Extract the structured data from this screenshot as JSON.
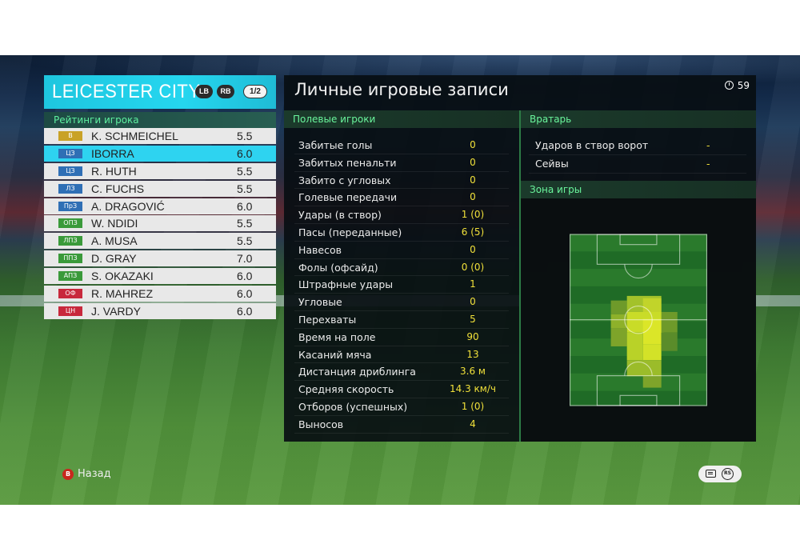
{
  "team": {
    "name": "LEICESTER CITY",
    "lb_label": "LB",
    "rb_label": "RB",
    "page": "1/2"
  },
  "ratings_title": "Рейтинги игрока",
  "players": [
    {
      "pos": "В",
      "pos_color": "#c9a227",
      "name": "K. SCHMEICHEL",
      "rating": "5.5",
      "selected": false
    },
    {
      "pos": "ЦЗ",
      "pos_color": "#2f6fb5",
      "name": "IBORRA",
      "rating": "6.0",
      "selected": true
    },
    {
      "pos": "ЦЗ",
      "pos_color": "#2f6fb5",
      "name": "R. HUTH",
      "rating": "5.5",
      "selected": false
    },
    {
      "pos": "ЛЗ",
      "pos_color": "#2f6fb5",
      "name": "C. FUCHS",
      "rating": "5.5",
      "selected": false
    },
    {
      "pos": "ПрЗ",
      "pos_color": "#2f6fb5",
      "name": "A. DRAGOVIĆ",
      "rating": "6.0",
      "selected": false
    },
    {
      "pos": "ОПЗ",
      "pos_color": "#3a9a3a",
      "name": "W. NDIDI",
      "rating": "5.5",
      "selected": false
    },
    {
      "pos": "ЛПЗ",
      "pos_color": "#3a9a3a",
      "name": "A. MUSA",
      "rating": "5.5",
      "selected": false
    },
    {
      "pos": "ППЗ",
      "pos_color": "#3a9a3a",
      "name": "D. GRAY",
      "rating": "7.0",
      "selected": false
    },
    {
      "pos": "АПЗ",
      "pos_color": "#3a9a3a",
      "name": "S. OKAZAKI",
      "rating": "6.0",
      "selected": false
    },
    {
      "pos": "ОФ",
      "pos_color": "#c8283c",
      "name": "R. MAHREZ",
      "rating": "6.0",
      "selected": false
    },
    {
      "pos": "ЦН",
      "pos_color": "#c8283c",
      "name": "J. VARDY",
      "rating": "6.0",
      "selected": false
    }
  ],
  "main": {
    "title": "Личные игровые записи",
    "timer": "59",
    "field_players_title": "Полевые игроки",
    "goalkeeper_title": "Вратарь",
    "zone_title": "Зона игры"
  },
  "stats": [
    {
      "label": "Забитые голы",
      "value": "0"
    },
    {
      "label": "Забитых пенальти",
      "value": "0"
    },
    {
      "label": "Забито с угловых",
      "value": "0"
    },
    {
      "label": "Голевые передачи",
      "value": "0"
    },
    {
      "label": "Удары (в створ)",
      "value": "1 (0)"
    },
    {
      "label": "Пасы (переданные)",
      "value": "6 (5)"
    },
    {
      "label": "Навесов",
      "value": "0"
    },
    {
      "label": "Фолы (офсайд)",
      "value": "0 (0)"
    },
    {
      "label": "Штрафные удары",
      "value": "1"
    },
    {
      "label": "Угловые",
      "value": "0"
    },
    {
      "label": "Перехваты",
      "value": "5"
    },
    {
      "label": "Время на поле",
      "value": "90"
    },
    {
      "label": "Касаний мяча",
      "value": "13"
    },
    {
      "label": "Дистанция дриблинга",
      "value": "3.6 м"
    },
    {
      "label": "Средняя скорость",
      "value": "14.3 км/ч"
    },
    {
      "label": "Отборов (успешных)",
      "value": "1 (0)"
    },
    {
      "label": "Выносов",
      "value": "4"
    }
  ],
  "goalkeeper": [
    {
      "label": "Ударов в створ ворот",
      "value": "-"
    },
    {
      "label": "Сейвы",
      "value": "-"
    }
  ],
  "bottom": {
    "back_key": "B",
    "back_label": "Назад",
    "rs_label": "RS"
  },
  "colors": {
    "accent": "#25d6ef",
    "section_text": "#6af59c",
    "value_text": "#f0e03a"
  }
}
